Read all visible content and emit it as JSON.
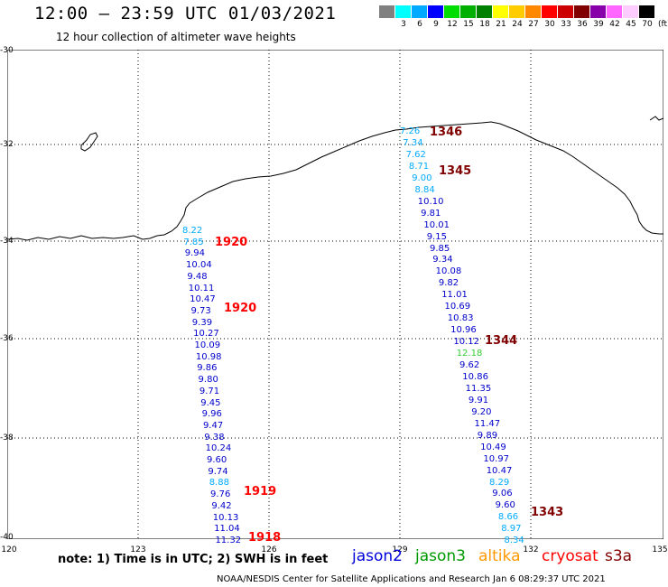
{
  "header": {
    "title": "12:00 – 23:59 UTC 01/03/2021",
    "subtitle": "12 hour collection of altimeter wave heights"
  },
  "color_scale": {
    "colors": [
      "#808080",
      "#00ffff",
      "#00aaff",
      "#0000ff",
      "#00dd00",
      "#00b000",
      "#008000",
      "#ffff00",
      "#ffcc00",
      "#ff8800",
      "#ff0000",
      "#cc0000",
      "#800000",
      "#8800aa",
      "#ff66ff",
      "#ffccff",
      "#000000"
    ],
    "ticks": [
      "3",
      "6",
      "9",
      "12",
      "15",
      "18",
      "21",
      "24",
      "27",
      "30",
      "33",
      "36",
      "39",
      "42",
      "45",
      "70"
    ],
    "unit": "(ft)"
  },
  "axes": {
    "lat_labels": [
      "-30",
      "-32",
      "-34",
      "-36",
      "-38",
      "-40"
    ],
    "lon_labels": [
      "120",
      "123",
      "126",
      "129",
      "132",
      "135"
    ]
  },
  "tracks": [
    {
      "time_labels": [
        {
          "text": "1920",
          "color": "#ff0000"
        },
        {
          "text": "1920",
          "color": "#ff0000"
        },
        {
          "text": "1919",
          "color": "#ff0000"
        },
        {
          "text": "1918",
          "color": "#ff0000"
        }
      ],
      "values": [
        {
          "v": "8.22",
          "c": "#00aaff"
        },
        {
          "v": "7.85",
          "c": "#00aaff"
        },
        {
          "v": "9.94",
          "c": "#0000cc"
        },
        {
          "v": "10.04",
          "c": "#0000cc"
        },
        {
          "v": "9.48",
          "c": "#0000cc"
        },
        {
          "v": "10.11",
          "c": "#0000cc"
        },
        {
          "v": "10.47",
          "c": "#0000cc"
        },
        {
          "v": "9.73",
          "c": "#0000cc"
        },
        {
          "v": "9.39",
          "c": "#0000cc"
        },
        {
          "v": "10.27",
          "c": "#0000cc"
        },
        {
          "v": "10.09",
          "c": "#0000cc"
        },
        {
          "v": "10.98",
          "c": "#0000cc"
        },
        {
          "v": "9.86",
          "c": "#0000cc"
        },
        {
          "v": "9.80",
          "c": "#0000cc"
        },
        {
          "v": "9.71",
          "c": "#0000cc"
        },
        {
          "v": "9.45",
          "c": "#0000cc"
        },
        {
          "v": "9.96",
          "c": "#0000cc"
        },
        {
          "v": "9.47",
          "c": "#0000cc"
        },
        {
          "v": "9.38",
          "c": "#0000cc"
        },
        {
          "v": "10.24",
          "c": "#0000cc"
        },
        {
          "v": "9.60",
          "c": "#0000cc"
        },
        {
          "v": "9.74",
          "c": "#0000cc"
        },
        {
          "v": "8.88",
          "c": "#00aaff"
        },
        {
          "v": "9.76",
          "c": "#0000cc"
        },
        {
          "v": "9.42",
          "c": "#0000cc"
        },
        {
          "v": "10.13",
          "c": "#0000cc"
        },
        {
          "v": "11.04",
          "c": "#0000cc"
        },
        {
          "v": "11.32",
          "c": "#0000cc"
        }
      ]
    },
    {
      "time_labels": [
        {
          "text": "1346",
          "color": "#800000"
        },
        {
          "text": "1345",
          "color": "#800000"
        },
        {
          "text": "1344",
          "color": "#800000"
        },
        {
          "text": "1343",
          "color": "#800000"
        }
      ],
      "values": [
        {
          "v": "7.26",
          "c": "#00aaff"
        },
        {
          "v": "7.34",
          "c": "#00aaff"
        },
        {
          "v": "7.62",
          "c": "#00aaff"
        },
        {
          "v": "8.71",
          "c": "#00aaff"
        },
        {
          "v": "9.00",
          "c": "#00aaff"
        },
        {
          "v": "8.84",
          "c": "#00aaff"
        },
        {
          "v": "10.10",
          "c": "#0000cc"
        },
        {
          "v": "9.81",
          "c": "#0000cc"
        },
        {
          "v": "10.01",
          "c": "#0000cc"
        },
        {
          "v": "9.15",
          "c": "#0000cc"
        },
        {
          "v": "9.85",
          "c": "#0000cc"
        },
        {
          "v": "9.34",
          "c": "#0000cc"
        },
        {
          "v": "10.08",
          "c": "#0000cc"
        },
        {
          "v": "9.82",
          "c": "#0000cc"
        },
        {
          "v": "11.01",
          "c": "#0000cc"
        },
        {
          "v": "10.69",
          "c": "#0000cc"
        },
        {
          "v": "10.83",
          "c": "#0000cc"
        },
        {
          "v": "10.96",
          "c": "#0000cc"
        },
        {
          "v": "10.12",
          "c": "#0000cc"
        },
        {
          "v": "12.18",
          "c": "#33cc33"
        },
        {
          "v": "9.62",
          "c": "#0000cc"
        },
        {
          "v": "10.86",
          "c": "#0000cc"
        },
        {
          "v": "11.35",
          "c": "#0000cc"
        },
        {
          "v": "9.91",
          "c": "#0000cc"
        },
        {
          "v": "9.20",
          "c": "#0000cc"
        },
        {
          "v": "11.47",
          "c": "#0000cc"
        },
        {
          "v": "9.89",
          "c": "#0000cc"
        },
        {
          "v": "10.49",
          "c": "#0000cc"
        },
        {
          "v": "10.97",
          "c": "#0000cc"
        },
        {
          "v": "10.47",
          "c": "#0000cc"
        },
        {
          "v": "8.29",
          "c": "#00aaff"
        },
        {
          "v": "9.06",
          "c": "#0000cc"
        },
        {
          "v": "9.60",
          "c": "#0000cc"
        },
        {
          "v": "8.66",
          "c": "#00aaff"
        },
        {
          "v": "8.97",
          "c": "#00aaff"
        },
        {
          "v": "8.34",
          "c": "#00aaff"
        }
      ]
    }
  ],
  "note": "note: 1) Time is in UTC; 2) SWH is in feet",
  "legend": [
    {
      "label": "jason2",
      "color": "#0000dd"
    },
    {
      "label": "jason3",
      "color": "#009900"
    },
    {
      "label": "altika",
      "color": "#ff9900"
    },
    {
      "label": "cryosat",
      "color": "#ff0000"
    },
    {
      "label": "s3a",
      "color": "#800000"
    }
  ],
  "footer": "NOAA/NESDIS Center for Satellite Applications and Research    Jan  6 08:29:37 UTC 2021"
}
